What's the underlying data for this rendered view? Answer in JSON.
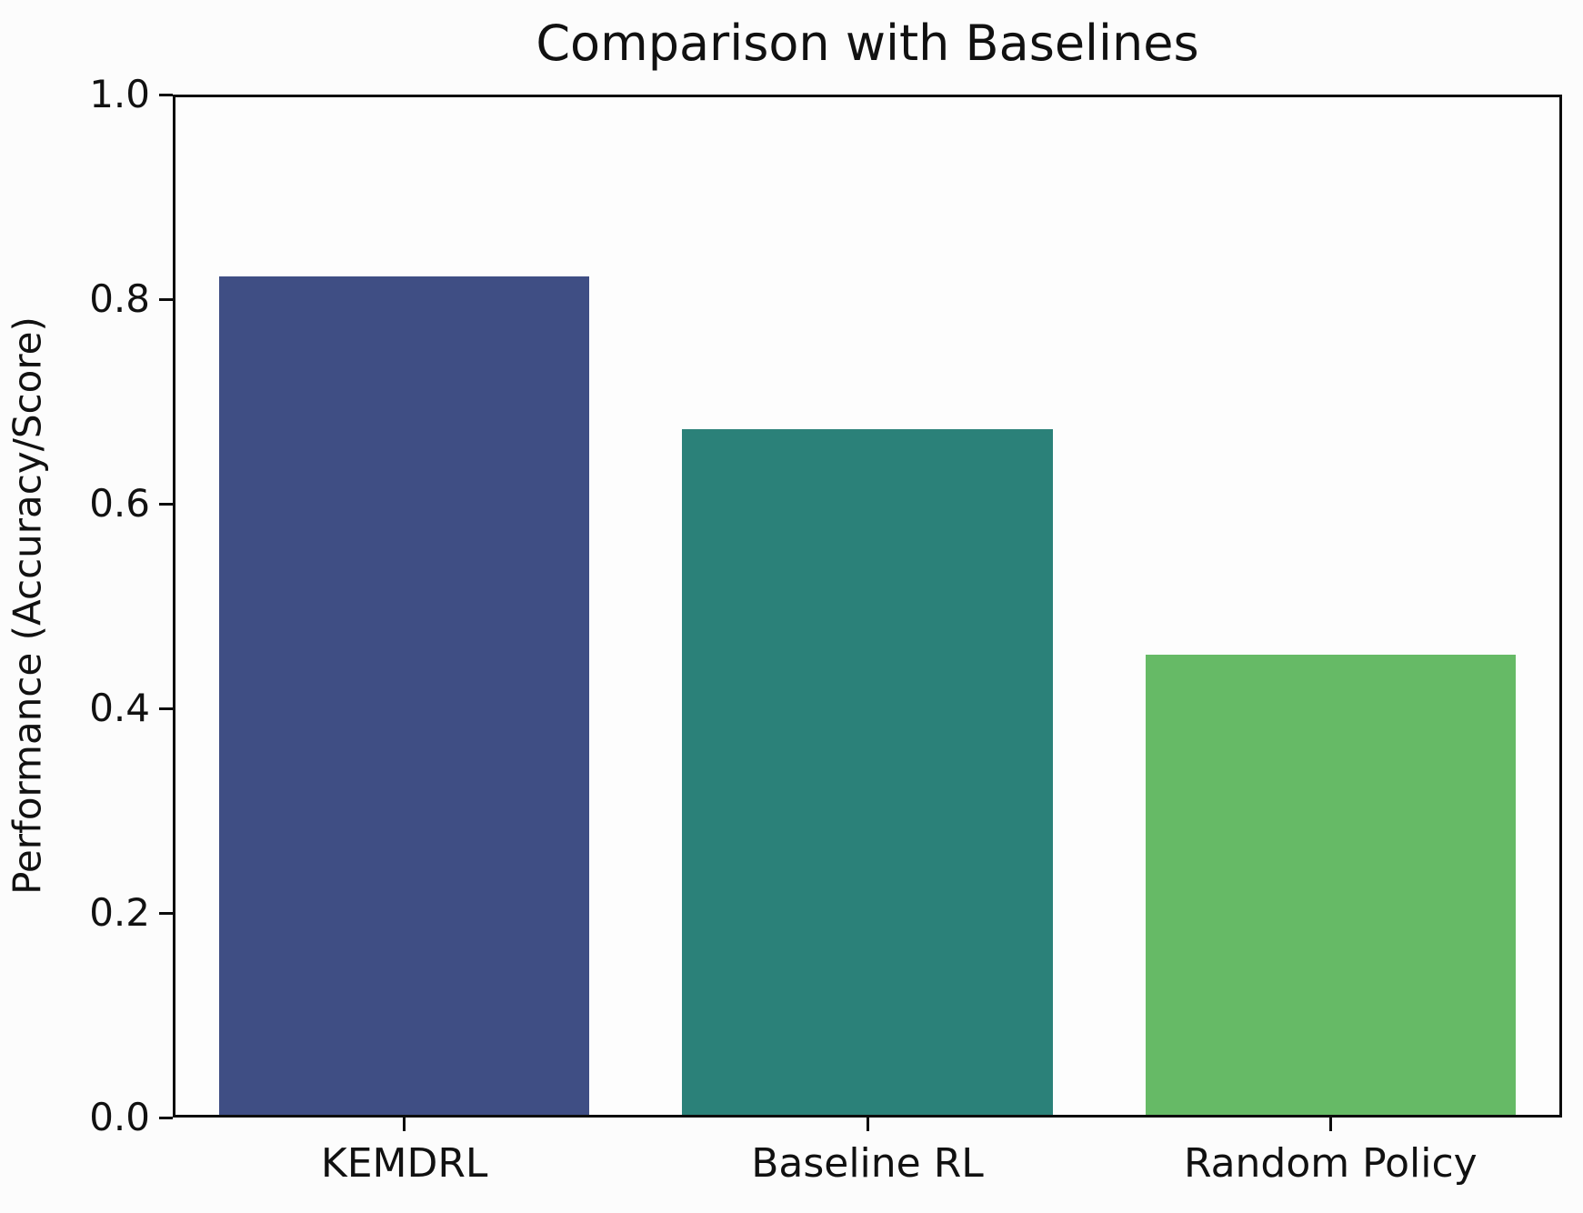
{
  "chart_data": {
    "type": "bar",
    "title": "Comparison with Baselines",
    "ylabel": "Performance (Accuracy/Score)",
    "xlabel": "",
    "categories": [
      "KEMDRL",
      "Baseline RL",
      "Random Policy"
    ],
    "values": [
      0.82,
      0.67,
      0.45
    ],
    "bar_colors": [
      "#3F4E84",
      "#2B8179",
      "#66BA66"
    ],
    "ylim": [
      0.0,
      1.0
    ],
    "yticks": [
      {
        "value": 0.0,
        "label": "0.0"
      },
      {
        "value": 0.2,
        "label": "0.2"
      },
      {
        "value": 0.4,
        "label": "0.4"
      },
      {
        "value": 0.6,
        "label": "0.6"
      },
      {
        "value": 0.8,
        "label": "0.8"
      },
      {
        "value": 1.0,
        "label": "1.0"
      }
    ],
    "grid": false,
    "legend_position": "none",
    "bar_width_fraction": 0.8
  },
  "colors": {
    "background": "#fcfcfc",
    "spine": "#0c0c0c",
    "text": "#111111"
  }
}
